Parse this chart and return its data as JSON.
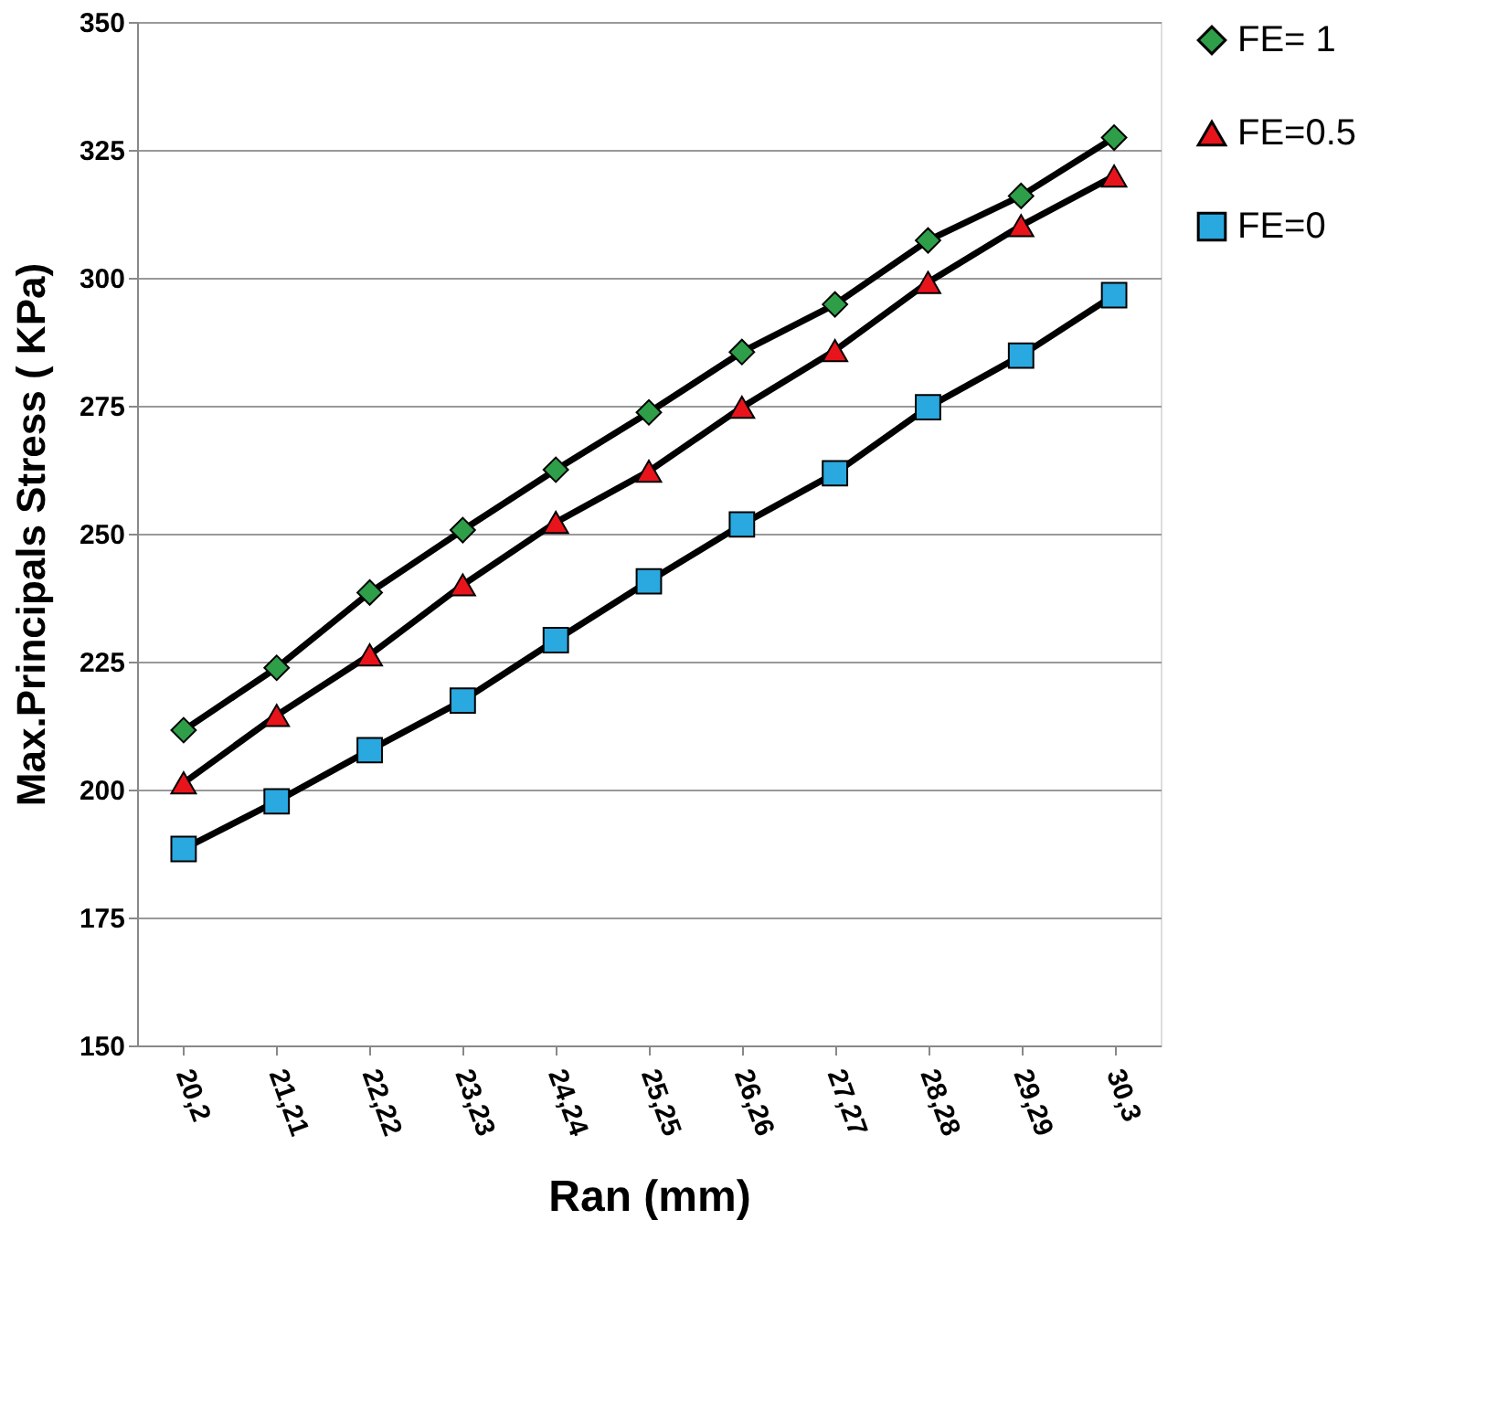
{
  "chart_data": {
    "type": "line",
    "xlabel": "Ran (mm)",
    "ylabel": "Max.Principals Stress ( KPa)",
    "categories": [
      "20,2",
      "21,21",
      "22,22",
      "23,23",
      "24,24",
      "25,25",
      "26,26",
      "27,27",
      "28,28",
      "29,29",
      "30,3"
    ],
    "series": [
      {
        "name": "FE= 1",
        "color": "#2e9e48",
        "marker": "diamond",
        "values": [
          211.6,
          223.8,
          238.5,
          250.7,
          262.5,
          273.7,
          285.5,
          294.8,
          307.3,
          316,
          327.4
        ]
      },
      {
        "name": "FE=0.5",
        "color": "#e8141c",
        "marker": "triangle",
        "values": [
          201.3,
          214.5,
          226.3,
          240,
          252.2,
          262.2,
          274.7,
          285.8,
          299.1,
          310.2,
          319.9
        ]
      },
      {
        "name": "FE=0",
        "color": "#2aa8e0",
        "marker": "square",
        "values": [
          188.4,
          197.7,
          207.7,
          217.4,
          229.2,
          240.7,
          251.8,
          261.8,
          274.7,
          284.8,
          296.6
        ]
      }
    ],
    "ylim": [
      150,
      350
    ],
    "yticks": [
      150,
      175,
      200,
      225,
      250,
      275,
      300,
      325,
      350
    ],
    "grid": "y",
    "legend": "right",
    "line_style": "solid"
  }
}
